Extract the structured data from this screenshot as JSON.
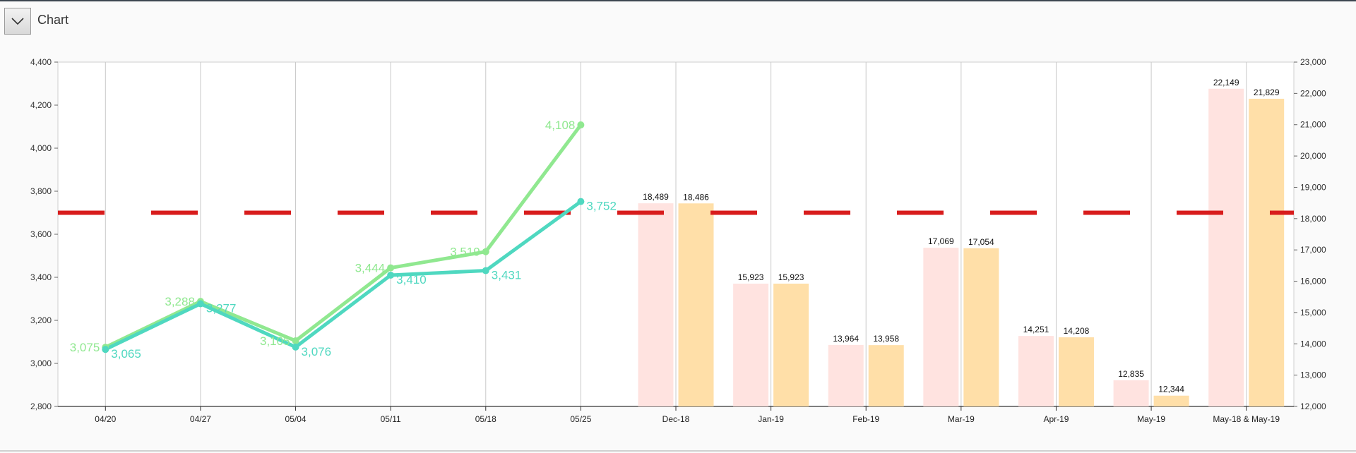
{
  "header": {
    "title": "Chart",
    "toggle_icon": "chevron-down-icon"
  },
  "chart_data": {
    "type": "combo",
    "categories": [
      "04/20",
      "04/27",
      "05/04",
      "05/11",
      "05/18",
      "05/25",
      "Dec-18",
      "Jan-19",
      "Feb-19",
      "Mar-19",
      "Apr-19",
      "May-19",
      "May-18 & May-19"
    ],
    "left_axis": {
      "ylim": [
        2800,
        4400
      ],
      "ticks": [
        "2,800",
        "3,000",
        "3,200",
        "3,400",
        "3,600",
        "3,800",
        "4,000",
        "4,200",
        "4,400"
      ]
    },
    "right_axis": {
      "ylim": [
        12000,
        23000
      ],
      "ticks": [
        "12,000",
        "13,000",
        "14,000",
        "15,000",
        "16,000",
        "17,000",
        "18,000",
        "19,000",
        "20,000",
        "21,000",
        "22,000",
        "23,000"
      ]
    },
    "line_series": [
      {
        "color": "#90e890",
        "values": [
          3075,
          3288,
          3105,
          3444,
          3519,
          4108
        ],
        "labels": [
          "3,075",
          "3,288",
          "3,105",
          "3,444",
          "3,519",
          "4,108"
        ]
      },
      {
        "color": "#4fd8c0",
        "values": [
          3065,
          3277,
          3076,
          3410,
          3431,
          3752
        ],
        "labels": [
          "3,065",
          "3,277",
          "3,076",
          "3,410",
          "3,431",
          "3,752"
        ]
      }
    ],
    "bar_series": [
      {
        "color": "#ffe3e0",
        "values": [
          18489,
          15923,
          13964,
          17069,
          14251,
          12835,
          22149
        ],
        "labels": [
          "18,489",
          "15,923",
          "13,964",
          "17,069",
          "14,251",
          "12,835",
          "22,149"
        ]
      },
      {
        "color": "#ffdfa8",
        "values": [
          18486,
          15923,
          13958,
          17054,
          14208,
          12344,
          21829
        ],
        "labels": [
          "18,486",
          "15,923",
          "13,958",
          "17,054",
          "14,208",
          "12,344",
          "21,829"
        ]
      }
    ],
    "reference_line": {
      "value": 3700,
      "color": "#d81c1c",
      "style": "dashed"
    },
    "grid": "vertical"
  }
}
